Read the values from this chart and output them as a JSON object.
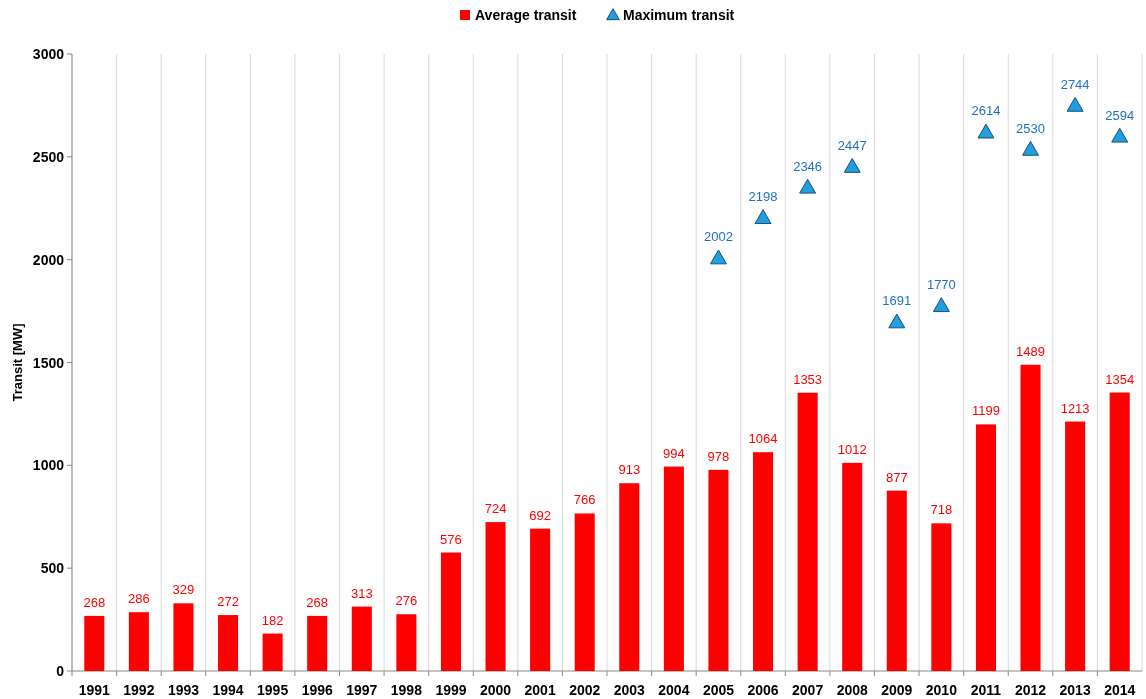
{
  "chart_data": {
    "type": "bar",
    "ylabel": "Transit [MW]",
    "categories": [
      "1991",
      "1992",
      "1993",
      "1994",
      "1995",
      "1996",
      "1997",
      "1998",
      "1999",
      "2000",
      "2001",
      "2002",
      "2003",
      "2004",
      "2005",
      "2006",
      "2007",
      "2008",
      "2009",
      "2010",
      "2011",
      "2012",
      "2013",
      "2014"
    ],
    "series": [
      {
        "name": "Average transit",
        "color": "#ff0000",
        "values": [
          268,
          286,
          329,
          272,
          182,
          268,
          313,
          276,
          576,
          724,
          692,
          766,
          913,
          994,
          978,
          1064,
          1353,
          1012,
          877,
          718,
          1199,
          1489,
          1213,
          1354
        ]
      },
      {
        "name": "Maximum transit",
        "type": "scatter",
        "color": "#1f9ee0",
        "marker": "triangle",
        "values": [
          null,
          null,
          null,
          null,
          null,
          null,
          null,
          null,
          null,
          null,
          null,
          null,
          null,
          null,
          2002,
          2198,
          2346,
          2447,
          1691,
          1770,
          2614,
          2530,
          2744,
          2594
        ]
      }
    ],
    "ylim": [
      0,
      3000
    ],
    "yticks": [
      0,
      500,
      1000,
      1500,
      2000,
      2500,
      3000
    ],
    "grid": "x",
    "legend": "top",
    "data_labels": true
  }
}
